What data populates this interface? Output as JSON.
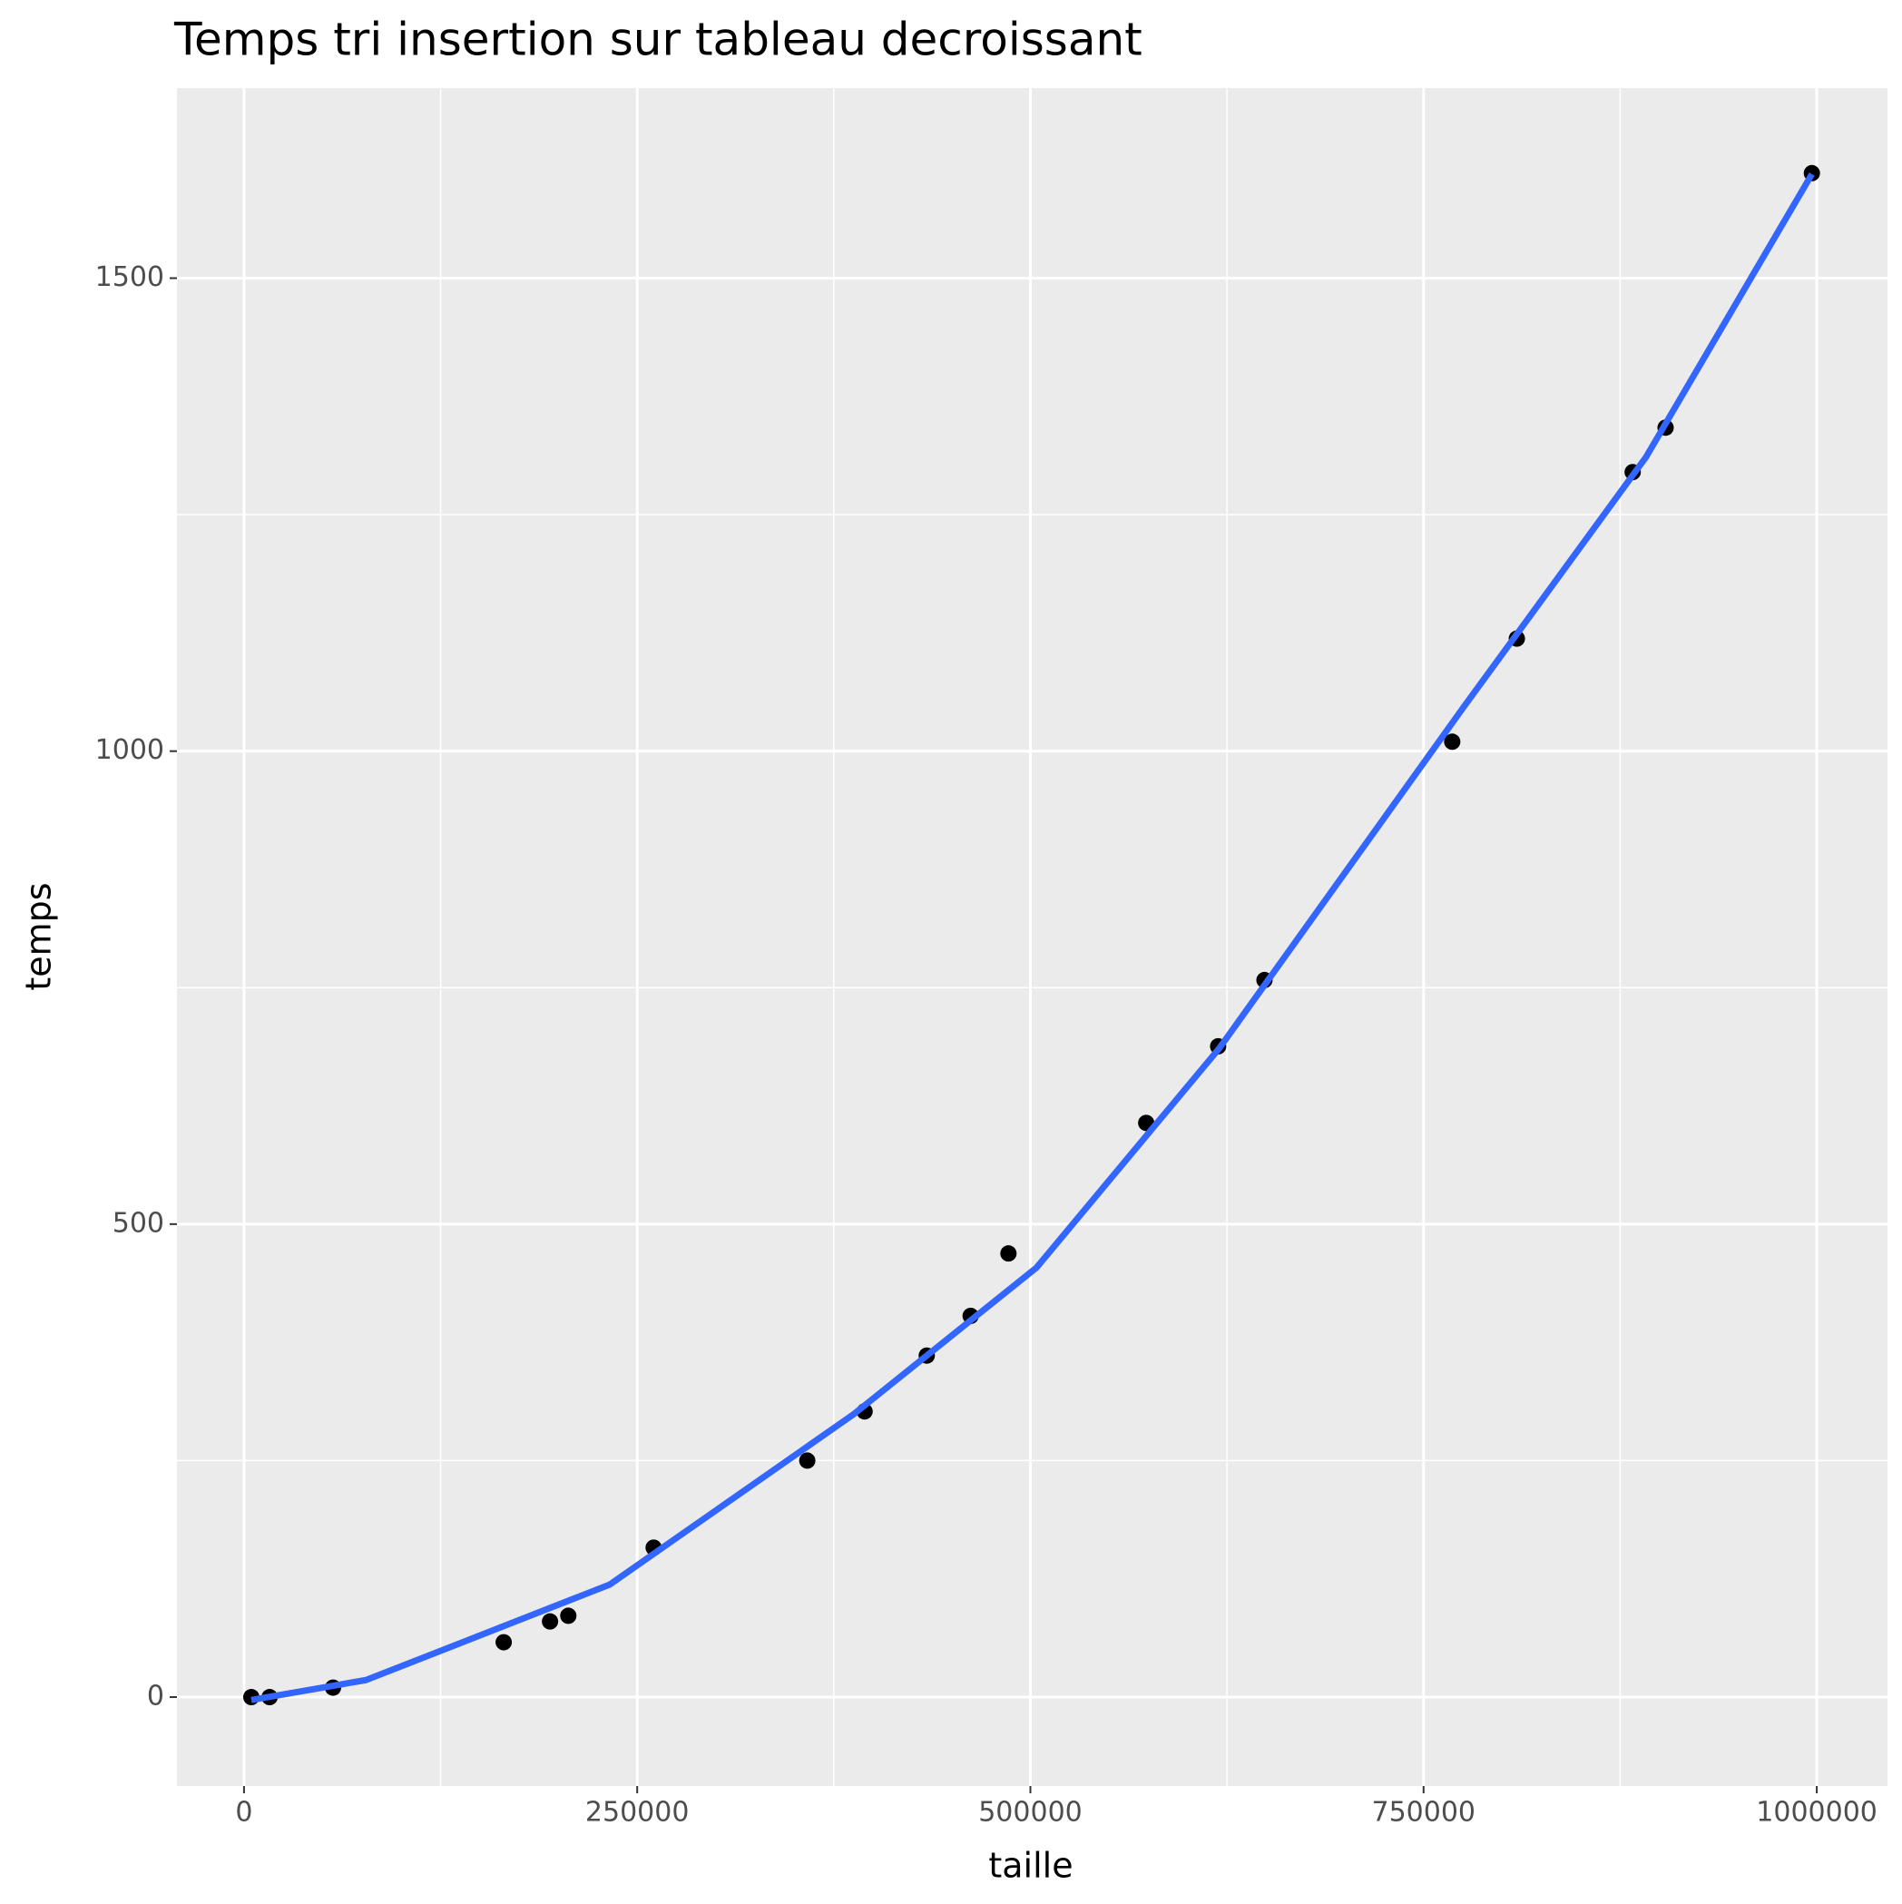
{
  "chart_data": {
    "type": "scatter",
    "title": "Temps tri insertion sur tableau decroissant",
    "x_label": "taille",
    "y_label": "temps",
    "x": [
      4651,
      16279,
      56589,
      165116,
      194574,
      206202,
      260465,
      358140,
      394574,
      434109,
      462016,
      486047,
      573643,
      619380,
      648837,
      768217,
      809302,
      882946,
      903876,
      996899
    ],
    "values": [
      0,
      0,
      10,
      58,
      80,
      86,
      158,
      250,
      302,
      361,
      403,
      469,
      607,
      688,
      758,
      1010,
      1119,
      1295,
      1342,
      1611
    ],
    "color": "#000000",
    "fit_x": [
      4651,
      77519,
      232558,
      387597,
      503876,
      620155,
      775194,
      891473,
      996899
    ],
    "fit_values": [
      -3,
      18,
      119,
      299,
      454,
      686,
      1046,
      1311,
      1610
    ],
    "fit_color": "#3366ff",
    "xlim": [
      -42636,
      1044961
    ],
    "ylim": [
      -94,
      1701
    ],
    "xticks": [
      0,
      250000,
      500000,
      750000,
      1000000
    ],
    "yticks": [
      0,
      500,
      1000,
      1500
    ],
    "x_minor_ticks": [
      125000,
      375000,
      625000,
      875000
    ],
    "y_minor_ticks": [
      250,
      750,
      1250
    ],
    "grid": true
  }
}
